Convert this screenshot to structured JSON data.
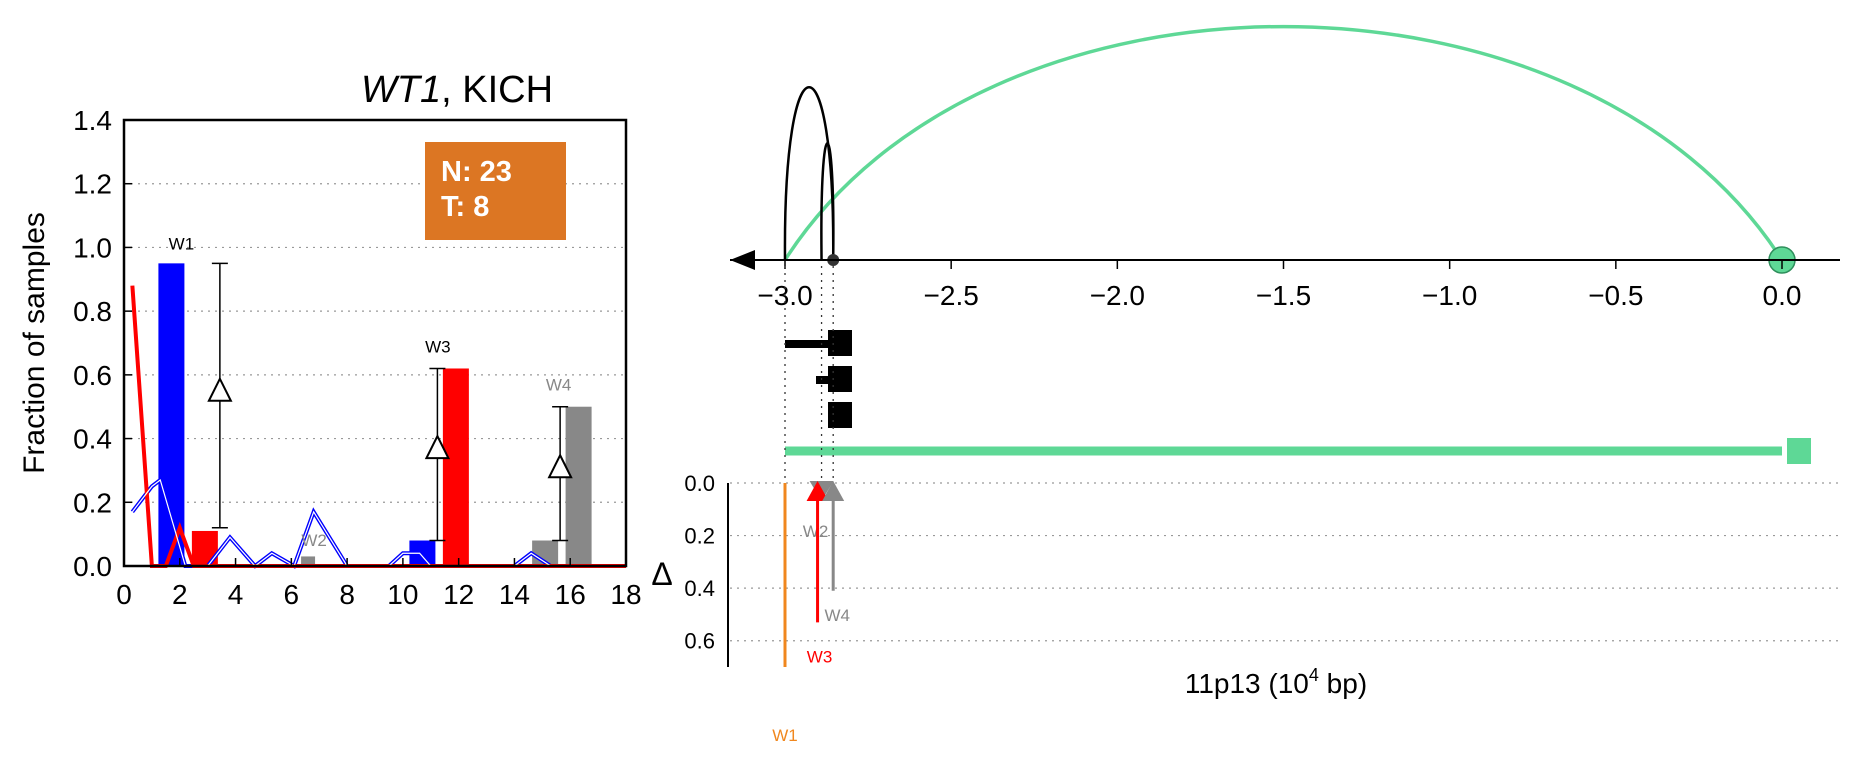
{
  "title": {
    "gene": "WT1",
    "rest": ", KICH"
  },
  "counts": {
    "n_label": "N: 23",
    "t_label": "T: 8",
    "box_color": "#dc7623"
  },
  "colors": {
    "normal": "#0000ff",
    "tumor": "#ff0000",
    "green": "#5ed896",
    "orange": "#f0871e",
    "gray": "#888888",
    "black": "#000000"
  },
  "chart_data": [
    {
      "type": "bar",
      "title": "WT1, KICH",
      "xlabel": "",
      "ylabel": "Fraction of samples",
      "xlim": [
        0,
        18
      ],
      "ylim": [
        0,
        1.4
      ],
      "xticks": [
        0,
        2,
        4,
        6,
        8,
        10,
        12,
        14,
        16,
        18
      ],
      "yticks": [
        0.0,
        0.2,
        0.4,
        0.6,
        0.8,
        1.0,
        1.2,
        1.4
      ],
      "ytick_labels": [
        "0.0",
        "0.2",
        "0.4",
        "0.6",
        "0.8",
        "1.0",
        "1.2",
        "1.4"
      ],
      "grid": "horizontal dotted",
      "normal_curve": {
        "x": [
          0.3,
          1.0,
          1.3,
          2.2,
          3.0,
          3.8,
          4.7,
          5.3,
          6.1,
          6.8,
          8.0,
          9.5,
          10.0,
          10.6,
          11.0,
          12.0,
          14.0,
          14.6,
          15.3,
          16.0,
          16.8
        ],
        "y": [
          0.17,
          0.25,
          0.27,
          0.0,
          0.0,
          0.09,
          0.0,
          0.04,
          0.0,
          0.17,
          0.0,
          0.0,
          0.04,
          0.04,
          0.0,
          0.0,
          0.0,
          0.04,
          0.0,
          0.0,
          0.0
        ]
      },
      "tumor_curve": {
        "x": [
          0.3,
          1.0,
          1.5,
          2.0,
          2.5,
          3.5,
          18.0
        ],
        "y": [
          0.88,
          0.0,
          0.0,
          0.12,
          0.0,
          0.0,
          0.0
        ]
      },
      "windows": [
        {
          "label": "W1",
          "normal_x": 1.7,
          "normal_h": 0.95,
          "tumor_x": 2.9,
          "tumor_h": 0.11,
          "delta_x": 2.9,
          "range": [
            0.12,
            0.95
          ],
          "delta_y": 0.55,
          "color": "#000000"
        },
        {
          "label": "W2",
          "normal_x": 6.2,
          "normal_h": 0.0,
          "tumor_x": 6.6,
          "tumor_h": 0.03,
          "delta_x": null,
          "range": null,
          "delta_y": null,
          "color": "#888888"
        },
        {
          "label": "W3",
          "normal_x": 10.7,
          "normal_h": 0.08,
          "tumor_x": 11.9,
          "tumor_h": 0.62,
          "delta_x": 10.7,
          "range": [
            0.08,
            0.62
          ],
          "delta_y": 0.37,
          "color": "#000000"
        },
        {
          "label": "W4",
          "normal_x": 15.1,
          "normal_h": 0.08,
          "tumor_x": 16.3,
          "tumor_h": 0.5,
          "delta_x": 15.1,
          "range": [
            0.08,
            0.5
          ],
          "delta_y": 0.31,
          "color": "#888888"
        }
      ]
    },
    {
      "type": "line",
      "xlabel": "11p13 (10^4 bp)",
      "xlabel_parts": {
        "before": "11p13 (10",
        "sup": "4",
        "after": " bp)"
      },
      "xlim": [
        -3.12,
        0.18
      ],
      "xticks": [
        -3.0,
        -2.5,
        -2.0,
        -1.5,
        -1.0,
        -0.5,
        0.0
      ],
      "xtick_labels": [
        "−3.0",
        "−2.5",
        "−2.0",
        "−1.5",
        "−1.0",
        "−0.5",
        "0.0"
      ],
      "arcs": [
        {
          "from": -3.0,
          "to": 0.0,
          "height": 1.0,
          "color": "#5ed896"
        },
        {
          "from": -3.0,
          "to": -2.855,
          "height": 0.74,
          "color": "#000000"
        },
        {
          "from": -2.89,
          "to": -2.855,
          "height": 0.5,
          "color": "#000000"
        }
      ],
      "gene_model": {
        "start": -3.0,
        "end": 0.0
      },
      "delta_panel": {
        "ylabel": "Δ",
        "ylim": [
          0,
          0.7
        ],
        "yticks": [
          0.0,
          0.2,
          0.4,
          0.6
        ],
        "ytick_labels": [
          "0.0",
          "0.2",
          "0.4",
          "0.6"
        ],
        "windows": [
          {
            "label": "W1",
            "x": -3.0,
            "delta": 0.7,
            "color": "#f0871e"
          },
          {
            "label": "W2",
            "x": -2.89,
            "delta": 0.0,
            "color": "#888888"
          },
          {
            "label": "W3",
            "x": -2.89,
            "delta": 0.53,
            "color": "#ff0000"
          },
          {
            "label": "W4",
            "x": -2.855,
            "delta": 0.41,
            "color": "#888888"
          }
        ]
      }
    }
  ]
}
